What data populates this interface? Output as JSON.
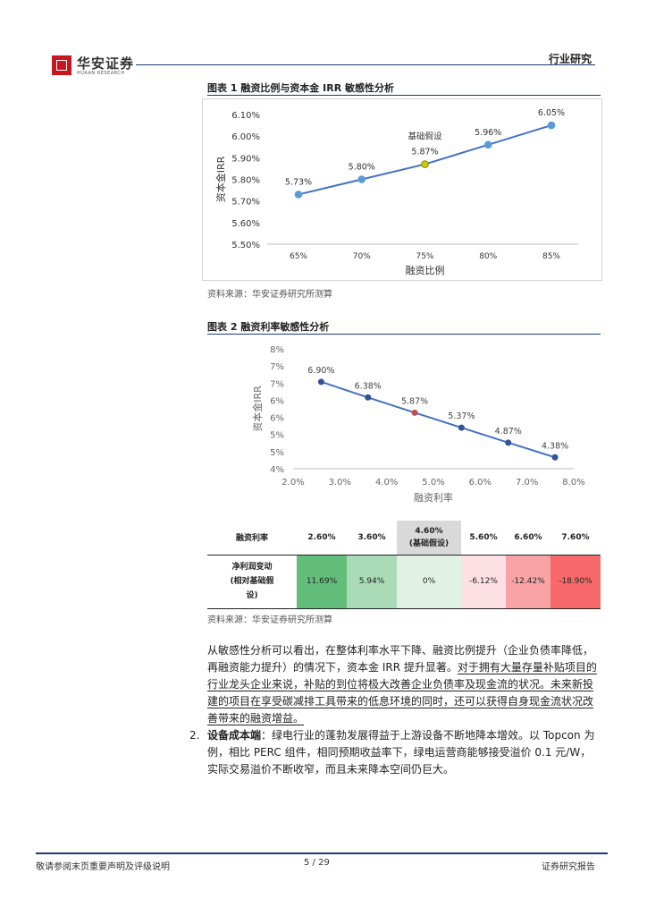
{
  "header": {
    "logo_text": "华安证券",
    "logo_en": "HUAAN RESEARCH",
    "section": "行业研究"
  },
  "figure1": {
    "caption": "图表 1 融资比例与资本金 IRR 敏感性分析",
    "source": "资料来源：华安证券研究所测算"
  },
  "figure2": {
    "caption": "图表 2 融资利率敏感性分析",
    "source": "资料来源：华安证券研究所测算"
  },
  "table": {
    "row1_header": "融资利率",
    "rates": [
      "2.60%",
      "3.60%",
      "4.60%",
      "5.60%",
      "6.60%",
      "7.60%"
    ],
    "base_note": "(基础假设)",
    "row2_header_lines": [
      "净利润变动",
      "(相对基础假",
      "设)"
    ],
    "changes": [
      "11.69%",
      "5.94%",
      "0%",
      "-6.12%",
      "-12.42%",
      "-18.90%"
    ],
    "colors": [
      "#63be7b",
      "#a9dbb7",
      "#e1f2e5",
      "#fde0e3",
      "#f9a3a7",
      "#f8696b"
    ]
  },
  "body": {
    "p1_plain": "从敏感性分析可以看出，在整体利率水平下降、融资比例提升（企业负债率降低，再融资能力提升）的情况下，资本金 IRR 提升显著。",
    "p1_under": "对于拥有大量存量补贴项目的行业龙头企业来说，补贴的到位将极大改善企业负债率及现金流的状况。未来新投建的项目在享受碳减排工具带来的低息环境的同时，还可以获得自身现金流状况改善带来的融资增益。",
    "item2_num": "2.",
    "item2_lead": "设备成本端",
    "item2_text": "：绿电行业的蓬勃发展得益于上游设备不断地降本增效。以 Topcon 为例，相比 PERC 组件，相同预期收益率下，绿电运营商能够接受溢价 0.1 元/W，实际交易溢价不断收窄，而且未来降本空间仍巨大。"
  },
  "footer": {
    "left": "敬请参阅末页重要声明及评级说明",
    "page": "5 / 29",
    "right": "证券研究报告"
  },
  "chart_data": [
    {
      "type": "line",
      "title": "",
      "xlabel": "融资比例",
      "ylabel": "资本金IRR",
      "categories": [
        "65%",
        "70%",
        "75%",
        "80%",
        "85%"
      ],
      "series": [
        {
          "values": [
            5.73,
            5.8,
            5.87,
            5.96,
            6.05
          ]
        }
      ],
      "point_labels": [
        "5.73%",
        "5.80%",
        "5.87%",
        "5.96%",
        "6.05%"
      ],
      "ylim": [
        5.5,
        6.1
      ],
      "yticks": [
        "5.50%",
        "5.60%",
        "5.70%",
        "5.80%",
        "5.90%",
        "6.00%",
        "6.10%"
      ],
      "annotation": "基础假设",
      "highlight_index": 2,
      "line_color": "#4472c4",
      "marker_color": "#5b9bd5",
      "highlight_color": "#c9d200",
      "grid": false
    },
    {
      "type": "line",
      "title": "",
      "xlabel": "融资利率",
      "ylabel": "资本金IRR",
      "x": [
        2.6,
        3.6,
        4.6,
        5.6,
        6.6,
        7.6
      ],
      "series": [
        {
          "values": [
            6.9,
            6.38,
            5.87,
            5.37,
            4.87,
            4.38
          ]
        }
      ],
      "point_labels": [
        "6.90%",
        "6.38%",
        "5.87%",
        "5.37%",
        "4.87%",
        "4.38%"
      ],
      "xlim": [
        2.0,
        8.0
      ],
      "xticks": [
        "2.0%",
        "3.0%",
        "4.0%",
        "5.0%",
        "6.0%",
        "7.0%",
        "8.0%"
      ],
      "ylim": [
        4,
        8
      ],
      "yticks": [
        "4%",
        "5%",
        "5%",
        "6%",
        "6%",
        "7%",
        "7%",
        "8%"
      ],
      "highlight_index": 2,
      "line_color": "#4472c4",
      "marker_color": "#2f5597",
      "highlight_color": "#c0504d",
      "grid": false
    }
  ]
}
